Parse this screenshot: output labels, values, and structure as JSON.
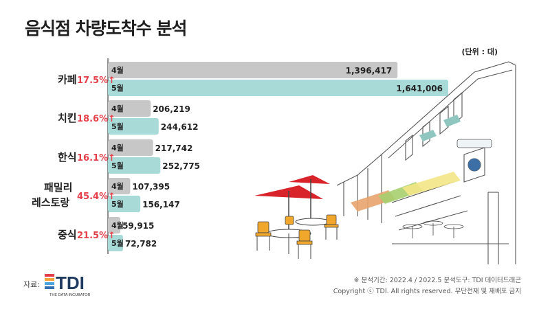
{
  "title": "음식점 차량도착수 분석",
  "unit": "(단위 : 대)",
  "source_label": "자료:",
  "logo": {
    "text": "TDI",
    "subtitle": "THE DATA INCUBATOR"
  },
  "footer": {
    "line1": "※ 분석기간: 2022.4 / 2022.5    분석도구: TDI 데이터드래곤",
    "line2": "Copyright ⓒ TDI. All rights reserved. 무단전재 및 재배포 금지"
  },
  "colors": {
    "april": "#c7c7c7",
    "may": "#a8dbd8",
    "increase": "#e5404a",
    "text": "#222222"
  },
  "chart_data": {
    "type": "bar",
    "orientation": "horizontal",
    "categories": [
      "카페",
      "치킨",
      "한식",
      "패밀리 레스토랑",
      "중식"
    ],
    "category_lines": [
      [
        "카페"
      ],
      [
        "치킨"
      ],
      [
        "한식"
      ],
      [
        "패밀리",
        "레스토랑"
      ],
      [
        "중식"
      ]
    ],
    "growth": [
      "17.5%↑",
      "18.6%↑",
      "16.1%↑",
      "45.4%↑",
      "21.5%↑"
    ],
    "series": [
      {
        "name": "4월",
        "values": [
          1396417,
          206219,
          217742,
          107395,
          59915
        ]
      },
      {
        "name": "5월",
        "values": [
          1641006,
          244612,
          252775,
          156147,
          72782
        ]
      }
    ],
    "value_labels": [
      [
        "1,396,417",
        "206,219",
        "217,742",
        "107,395",
        "59,915"
      ],
      [
        "1,641,006",
        "244,612",
        "252,775",
        "156,147",
        "72,782"
      ]
    ]
  }
}
